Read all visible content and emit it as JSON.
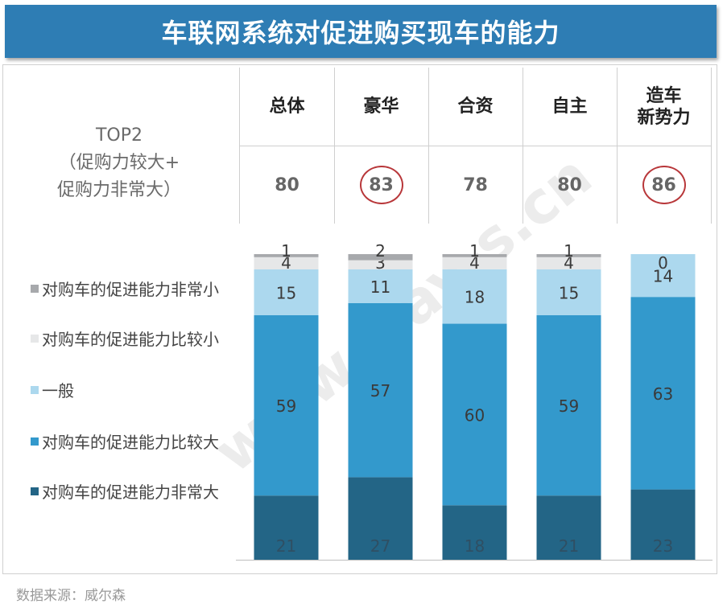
{
  "title": "车联网系统对促进购买现车的能力",
  "top2_label": {
    "line1": "TOP2",
    "line2": "（促购力较大+",
    "line3": "促购力非常大）"
  },
  "source": "数据来源：威尔森",
  "watermark": "www.way-s.cn",
  "groups": [
    {
      "name": "总体",
      "top2": "80",
      "circled": false
    },
    {
      "name": "豪华",
      "top2": "83",
      "circled": true
    },
    {
      "name": "合资",
      "top2": "78",
      "circled": false
    },
    {
      "name": "自主",
      "top2": "80",
      "circled": false
    },
    {
      "name": "造车\n新势力",
      "top2": "86",
      "circled": true
    }
  ],
  "chart_data": {
    "type": "bar",
    "stacked": true,
    "categories": [
      "总体",
      "豪华",
      "合资",
      "自主",
      "造车新势力"
    ],
    "series": [
      {
        "name": "对购车的促进能力非常大",
        "color": "#236586",
        "values": [
          21,
          27,
          18,
          21,
          23
        ]
      },
      {
        "name": "对购车的促进能力比较大",
        "color": "#3399cc",
        "values": [
          59,
          57,
          60,
          59,
          63
        ]
      },
      {
        "name": "一般",
        "color": "#acd8ee",
        "values": [
          15,
          11,
          18,
          15,
          14
        ]
      },
      {
        "name": "对购车的促进能力比较小",
        "color": "#e6e7e8",
        "values": [
          4,
          3,
          4,
          4,
          0
        ]
      },
      {
        "name": "对购车的促进能力非常小",
        "color": "#a7a9ac",
        "values": [
          1,
          2,
          1,
          1,
          0
        ]
      }
    ],
    "legend_order": [
      4,
      3,
      2,
      1,
      0
    ],
    "ylim": [
      0,
      100
    ]
  }
}
